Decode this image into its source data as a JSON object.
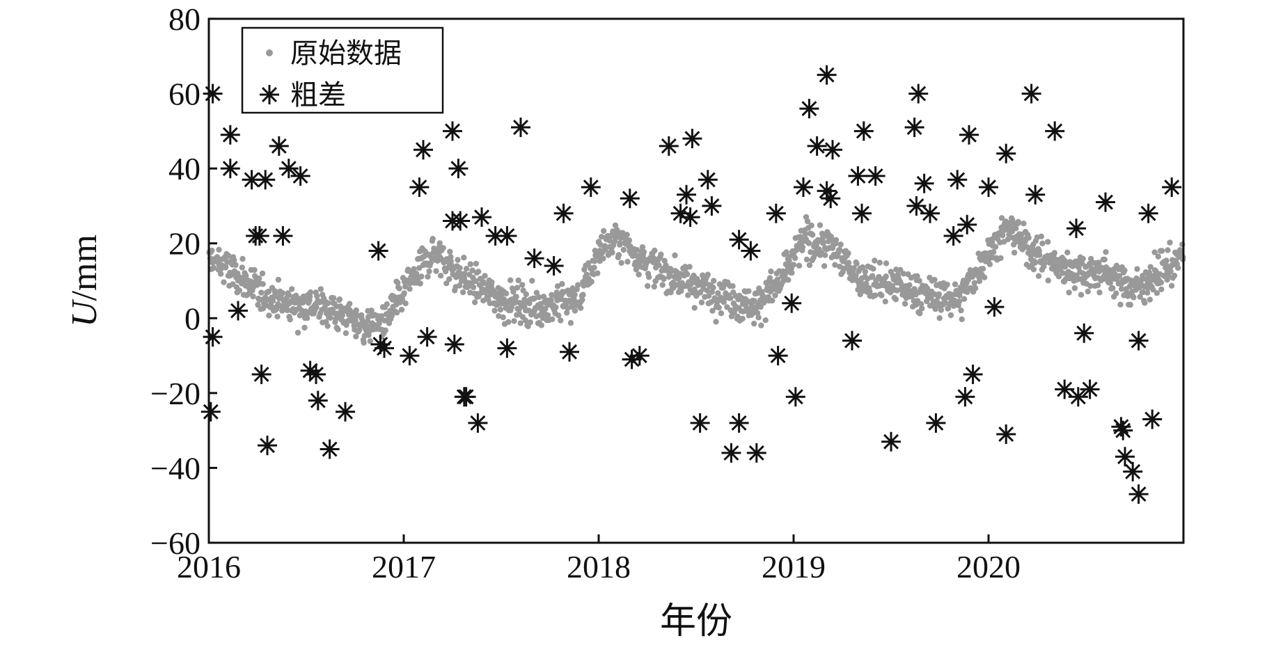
{
  "chart_data": {
    "type": "scatter",
    "title": "",
    "xlabel": "年份",
    "ylabel": "U/mm",
    "ylabel_italic": "U",
    "ylabel_unit": "/mm",
    "xlim": [
      2016.0,
      2021.0
    ],
    "ylim": [
      -60,
      80
    ],
    "xticks": [
      2016,
      2017,
      2018,
      2019,
      2020
    ],
    "xtick_labels": [
      "2016",
      "2017",
      "2018",
      "2019",
      "2020"
    ],
    "yticks": [
      -60,
      -40,
      -20,
      0,
      20,
      40,
      60,
      80
    ],
    "ytick_labels": [
      "−60",
      "−40",
      "−20",
      "0",
      "20",
      "40",
      "60",
      "80"
    ],
    "grid": false,
    "legend_position": "top-left",
    "series": [
      {
        "name": "原始数据",
        "marker": "dot",
        "color": "#999999",
        "trend": {
          "x": [
            2016.0,
            2016.1,
            2016.25,
            2016.4,
            2016.6,
            2016.8,
            2016.9,
            2017.05,
            2017.15,
            2017.3,
            2017.5,
            2017.7,
            2017.9,
            2018.0,
            2018.1,
            2018.3,
            2018.5,
            2018.7,
            2018.8,
            2018.95,
            2019.05,
            2019.2,
            2019.35,
            2019.5,
            2019.7,
            2019.85,
            2020.0,
            2020.1,
            2020.25,
            2020.4,
            2020.6,
            2020.75,
            2020.85,
            2021.0
          ],
          "y": [
            16,
            13,
            7,
            4,
            3,
            -2,
            -1,
            11,
            18,
            11,
            5,
            3,
            5,
            18,
            21,
            13,
            9,
            5,
            3,
            11,
            21,
            19,
            10,
            9,
            6,
            5,
            18,
            24,
            17,
            13,
            12,
            8,
            11,
            17
          ]
        },
        "scatter_spread": 3.5,
        "approx_count": 1800
      },
      {
        "name": "粗差",
        "marker": "asterisk",
        "color": "#111111",
        "points": [
          [
            2016.02,
            60
          ],
          [
            2016.02,
            -5
          ],
          [
            2016.01,
            -25
          ],
          [
            2016.11,
            49
          ],
          [
            2016.11,
            40
          ],
          [
            2016.15,
            2
          ],
          [
            2016.22,
            37
          ],
          [
            2016.24,
            22
          ],
          [
            2016.26,
            22
          ],
          [
            2016.27,
            -15
          ],
          [
            2016.3,
            -34
          ],
          [
            2016.29,
            37
          ],
          [
            2016.36,
            46
          ],
          [
            2016.38,
            22
          ],
          [
            2016.41,
            40
          ],
          [
            2016.47,
            38
          ],
          [
            2016.52,
            -14
          ],
          [
            2016.55,
            -15
          ],
          [
            2016.56,
            -22
          ],
          [
            2016.62,
            -35
          ],
          [
            2016.7,
            -25
          ],
          [
            2016.87,
            18
          ],
          [
            2016.88,
            -7
          ],
          [
            2016.9,
            -8
          ],
          [
            2017.03,
            -10
          ],
          [
            2017.08,
            35
          ],
          [
            2017.1,
            45
          ],
          [
            2017.12,
            -5
          ],
          [
            2017.25,
            50
          ],
          [
            2017.25,
            26
          ],
          [
            2017.26,
            -7
          ],
          [
            2017.28,
            40
          ],
          [
            2017.29,
            26
          ],
          [
            2017.31,
            -21
          ],
          [
            2017.32,
            -21
          ],
          [
            2017.38,
            -28
          ],
          [
            2017.4,
            27
          ],
          [
            2017.47,
            22
          ],
          [
            2017.53,
            22
          ],
          [
            2017.53,
            -8
          ],
          [
            2017.6,
            51
          ],
          [
            2017.67,
            16
          ],
          [
            2017.77,
            14
          ],
          [
            2017.82,
            28
          ],
          [
            2017.85,
            -9
          ],
          [
            2017.96,
            35
          ],
          [
            2018.16,
            32
          ],
          [
            2018.17,
            -11
          ],
          [
            2018.21,
            -10
          ],
          [
            2018.36,
            46
          ],
          [
            2018.42,
            28
          ],
          [
            2018.45,
            33
          ],
          [
            2018.47,
            27
          ],
          [
            2018.48,
            48
          ],
          [
            2018.52,
            -28
          ],
          [
            2018.56,
            37
          ],
          [
            2018.58,
            30
          ],
          [
            2018.68,
            -36
          ],
          [
            2018.72,
            21
          ],
          [
            2018.72,
            -28
          ],
          [
            2018.78,
            18
          ],
          [
            2018.81,
            -36
          ],
          [
            2018.91,
            28
          ],
          [
            2018.92,
            -10
          ],
          [
            2018.99,
            4
          ],
          [
            2019.01,
            -21
          ],
          [
            2019.05,
            35
          ],
          [
            2019.08,
            56
          ],
          [
            2019.12,
            46
          ],
          [
            2019.17,
            65
          ],
          [
            2019.17,
            34
          ],
          [
            2019.19,
            32
          ],
          [
            2019.2,
            45
          ],
          [
            2019.3,
            -6
          ],
          [
            2019.33,
            38
          ],
          [
            2019.35,
            28
          ],
          [
            2019.36,
            50
          ],
          [
            2019.42,
            38
          ],
          [
            2019.5,
            -33
          ],
          [
            2019.62,
            51
          ],
          [
            2019.63,
            30
          ],
          [
            2019.64,
            60
          ],
          [
            2019.67,
            36
          ],
          [
            2019.7,
            28
          ],
          [
            2019.73,
            -28
          ],
          [
            2019.82,
            22
          ],
          [
            2019.84,
            37
          ],
          [
            2019.88,
            -21
          ],
          [
            2019.89,
            25
          ],
          [
            2019.9,
            49
          ],
          [
            2019.92,
            -15
          ],
          [
            2020.0,
            35
          ],
          [
            2020.03,
            3
          ],
          [
            2020.09,
            44
          ],
          [
            2020.09,
            -31
          ],
          [
            2020.22,
            60
          ],
          [
            2020.24,
            33
          ],
          [
            2020.34,
            50
          ],
          [
            2020.39,
            -19
          ],
          [
            2020.45,
            24
          ],
          [
            2020.46,
            -21
          ],
          [
            2020.49,
            -4
          ],
          [
            2020.52,
            -19
          ],
          [
            2020.6,
            31
          ],
          [
            2020.68,
            -29
          ],
          [
            2020.69,
            -30
          ],
          [
            2020.7,
            -37
          ],
          [
            2020.74,
            -41
          ],
          [
            2020.77,
            -6
          ],
          [
            2020.77,
            -47
          ],
          [
            2020.82,
            28
          ],
          [
            2020.84,
            -27
          ],
          [
            2020.94,
            35
          ]
        ]
      }
    ]
  }
}
